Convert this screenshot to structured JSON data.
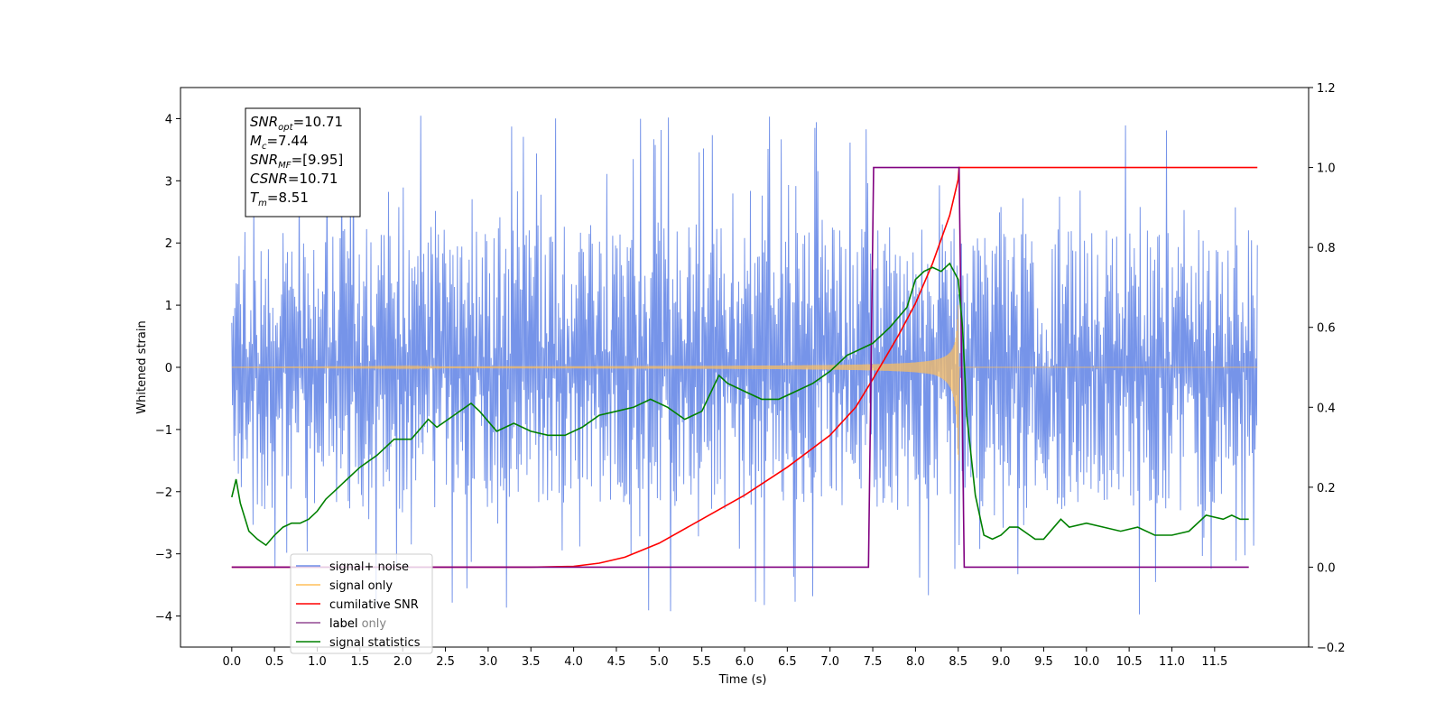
{
  "chart_data": {
    "type": "line",
    "xlabel": "Time (s)",
    "ylabel": "Whitened strain",
    "xlim": [
      -0.6,
      12.6
    ],
    "ylim": [
      -4.5,
      4.5
    ],
    "y2lim": [
      -0.2,
      1.2
    ],
    "x_ticks": [
      "0.0",
      "0.5",
      "1.0",
      "1.5",
      "2.0",
      "2.5",
      "3.0",
      "3.5",
      "4.0",
      "4.5",
      "5.0",
      "5.5",
      "6.0",
      "6.5",
      "7.0",
      "7.5",
      "8.0",
      "8.5",
      "9.0",
      "9.5",
      "10.0",
      "10.5",
      "11.0",
      "11.5"
    ],
    "y_ticks": [
      "4",
      "3",
      "2",
      "1",
      "0",
      "−1",
      "−2",
      "−3",
      "−4"
    ],
    "y2_ticks": [
      "1.2",
      "1.0",
      "0.8",
      "0.6",
      "0.4",
      "0.2",
      "0.0",
      "−0.2"
    ],
    "legend_placement": "lower-left",
    "grid": false,
    "info_box": [
      {
        "main": "SNR",
        "sub": "opt",
        "rest": "=10.71"
      },
      {
        "main": "M",
        "sub": "c",
        "rest": "=7.44"
      },
      {
        "main": "SNR",
        "sub": "MF",
        "rest": "=[9.95]"
      },
      {
        "main": "CSNR",
        "sub": "",
        "rest": "=10.71"
      },
      {
        "main": "T",
        "sub": "m",
        "rest": "=8.51"
      }
    ],
    "series": [
      {
        "name": "signal+ noise",
        "color": "#6f8ee8",
        "axis": "left",
        "kind": "noise",
        "x_range": [
          0.0,
          12.0
        ],
        "band": [
          -2.3,
          2.3
        ],
        "spike_max": 4.05
      },
      {
        "name": "signal only",
        "color": "#ffbf5a",
        "axis": "left",
        "kind": "chirp",
        "x_range": [
          0.0,
          12.0
        ],
        "merger_time": 8.51,
        "peak_amplitude": 1.0,
        "peak_negative": -1.5
      },
      {
        "name": "cumilative SNR",
        "color": "#ff0000",
        "axis": "right",
        "x": [
          0.0,
          3.5,
          4.0,
          4.3,
          4.6,
          5.0,
          5.5,
          6.0,
          6.5,
          7.0,
          7.3,
          7.5,
          7.8,
          8.0,
          8.2,
          8.4,
          8.5,
          8.51,
          12.0
        ],
        "values": [
          0.0,
          0.0,
          0.002,
          0.01,
          0.025,
          0.06,
          0.12,
          0.18,
          0.25,
          0.33,
          0.4,
          0.47,
          0.58,
          0.66,
          0.76,
          0.88,
          0.97,
          1.0,
          1.0
        ]
      },
      {
        "name": "label",
        "color": "#800080",
        "axis": "right",
        "x": [
          0.0,
          7.45,
          7.51,
          8.51,
          8.57,
          11.9
        ],
        "values": [
          0.0,
          0.0,
          1.0,
          1.0,
          0.0,
          0.0
        ]
      },
      {
        "name": "label only",
        "color": "#bbbbbb",
        "axis": "right",
        "legend_only": true
      },
      {
        "name": "signal statistics",
        "color": "#008000",
        "axis": "right",
        "x": [
          0.0,
          0.05,
          0.1,
          0.2,
          0.3,
          0.4,
          0.5,
          0.6,
          0.7,
          0.8,
          0.9,
          1.0,
          1.1,
          1.2,
          1.3,
          1.5,
          1.7,
          1.9,
          2.1,
          2.3,
          2.4,
          2.6,
          2.8,
          2.9,
          3.1,
          3.3,
          3.5,
          3.7,
          3.9,
          4.1,
          4.3,
          4.5,
          4.7,
          4.9,
          5.1,
          5.3,
          5.5,
          5.7,
          5.8,
          6.0,
          6.2,
          6.4,
          6.6,
          6.8,
          7.0,
          7.2,
          7.3,
          7.5,
          7.7,
          7.9,
          8.0,
          8.1,
          8.2,
          8.3,
          8.4,
          8.5,
          8.55,
          8.6,
          8.7,
          8.8,
          8.9,
          9.0,
          9.1,
          9.2,
          9.4,
          9.5,
          9.7,
          9.8,
          10.0,
          10.2,
          10.4,
          10.6,
          10.8,
          11.0,
          11.2,
          11.4,
          11.6,
          11.7,
          11.8,
          11.9
        ],
        "values": [
          0.175,
          0.22,
          0.16,
          0.09,
          0.07,
          0.055,
          0.08,
          0.1,
          0.11,
          0.11,
          0.12,
          0.14,
          0.17,
          0.19,
          0.21,
          0.25,
          0.28,
          0.32,
          0.32,
          0.37,
          0.35,
          0.38,
          0.41,
          0.39,
          0.34,
          0.36,
          0.34,
          0.33,
          0.33,
          0.35,
          0.38,
          0.39,
          0.4,
          0.42,
          0.4,
          0.37,
          0.39,
          0.48,
          0.46,
          0.44,
          0.42,
          0.42,
          0.44,
          0.46,
          0.49,
          0.53,
          0.54,
          0.56,
          0.6,
          0.65,
          0.72,
          0.74,
          0.75,
          0.74,
          0.76,
          0.72,
          0.6,
          0.38,
          0.18,
          0.08,
          0.07,
          0.08,
          0.1,
          0.1,
          0.07,
          0.07,
          0.12,
          0.1,
          0.11,
          0.1,
          0.09,
          0.1,
          0.08,
          0.08,
          0.09,
          0.13,
          0.12,
          0.13,
          0.12,
          0.12
        ]
      }
    ]
  }
}
